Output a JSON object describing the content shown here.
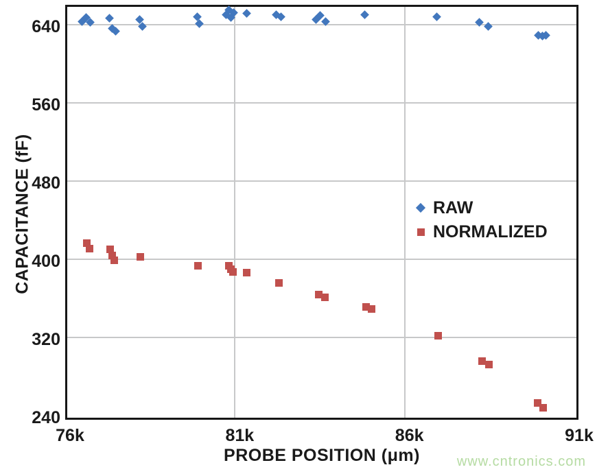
{
  "watermark": "www.cntronics.com",
  "colors": {
    "raw_blue": "#4277bd",
    "normalized_red": "#c0504d",
    "gridline": "#c7c8c9",
    "axis_border": "#161616",
    "watermark_green": "#b5dba2",
    "text": "#1a1a1a"
  },
  "chart_data": {
    "type": "scatter",
    "title": "",
    "xlabel": "PROBE POSITION (μm)",
    "ylabel": "CAPACITANCE (fF)",
    "xlim": [
      76000,
      91000
    ],
    "ylim": [
      240,
      660
    ],
    "grid": true,
    "x_gridlines": [
      81000,
      86000
    ],
    "y_gridlines": [
      320,
      400,
      480,
      560,
      640
    ],
    "x_ticks": [
      {
        "value": 76000,
        "label": "76k"
      },
      {
        "value": 81000,
        "label": "81k"
      },
      {
        "value": 86000,
        "label": "86k"
      },
      {
        "value": 91000,
        "label": "91k"
      }
    ],
    "y_ticks": [
      {
        "value": 240,
        "label": "240"
      },
      {
        "value": 320,
        "label": "320"
      },
      {
        "value": 400,
        "label": "400"
      },
      {
        "value": 480,
        "label": "480"
      },
      {
        "value": 560,
        "label": "560"
      },
      {
        "value": 640,
        "label": "640"
      }
    ],
    "legend": {
      "position": "inside-right",
      "items": [
        {
          "label": "RAW",
          "marker": "diamond",
          "color": "#4277bd"
        },
        {
          "label": "NORMALIZED",
          "marker": "square",
          "color": "#c0504d"
        }
      ]
    },
    "series": [
      {
        "name": "RAW",
        "marker": "diamond",
        "color": "#4277bd",
        "points": [
          [
            76490,
            643
          ],
          [
            76610,
            647
          ],
          [
            76730,
            642
          ],
          [
            77310,
            646
          ],
          [
            77380,
            636
          ],
          [
            77480,
            633
          ],
          [
            78200,
            645
          ],
          [
            78280,
            638
          ],
          [
            79900,
            648
          ],
          [
            79960,
            641
          ],
          [
            80740,
            650
          ],
          [
            80820,
            655
          ],
          [
            80890,
            647
          ],
          [
            80970,
            652
          ],
          [
            81340,
            651
          ],
          [
            82210,
            650
          ],
          [
            82360,
            648
          ],
          [
            83380,
            645
          ],
          [
            83520,
            649
          ],
          [
            83670,
            643
          ],
          [
            84830,
            650
          ],
          [
            86950,
            648
          ],
          [
            88210,
            642
          ],
          [
            88460,
            638
          ],
          [
            89930,
            629
          ],
          [
            90050,
            628
          ],
          [
            90170,
            629
          ]
        ]
      },
      {
        "name": "NORMALIZED",
        "marker": "square",
        "color": "#c0504d",
        "points": [
          [
            76630,
            416
          ],
          [
            76720,
            411
          ],
          [
            77330,
            410
          ],
          [
            77390,
            404
          ],
          [
            77450,
            399
          ],
          [
            78220,
            402
          ],
          [
            79920,
            393
          ],
          [
            80820,
            393
          ],
          [
            80890,
            390
          ],
          [
            80950,
            387
          ],
          [
            81340,
            386
          ],
          [
            82290,
            376
          ],
          [
            83460,
            364
          ],
          [
            83660,
            361
          ],
          [
            84870,
            351
          ],
          [
            85030,
            349
          ],
          [
            86980,
            322
          ],
          [
            88290,
            296
          ],
          [
            88490,
            292
          ],
          [
            89910,
            253
          ],
          [
            90090,
            248
          ]
        ]
      }
    ]
  }
}
